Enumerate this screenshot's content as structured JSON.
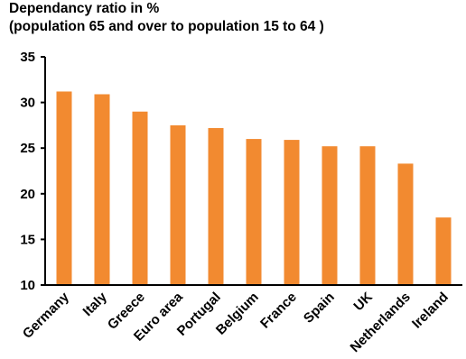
{
  "chart_data": {
    "type": "bar",
    "title_line1": "Dependancy ratio in %",
    "title_line2": "(population 65 and over to population 15 to 64 )",
    "categories": [
      "Germany",
      "Italy",
      "Greece",
      "Euro area",
      "Portugal",
      "Belgium",
      "France",
      "Spain",
      "UK",
      "Netherlands",
      "Ireland"
    ],
    "values": [
      31.2,
      30.9,
      29.0,
      27.5,
      27.2,
      26.0,
      25.9,
      25.2,
      25.2,
      23.3,
      17.4
    ],
    "y_ticks": [
      "10",
      "15",
      "20",
      "25",
      "30",
      "35"
    ],
    "ylim": [
      10,
      35
    ],
    "grid": false,
    "bar_color": "#F28A30",
    "axis_color": "#000000"
  }
}
